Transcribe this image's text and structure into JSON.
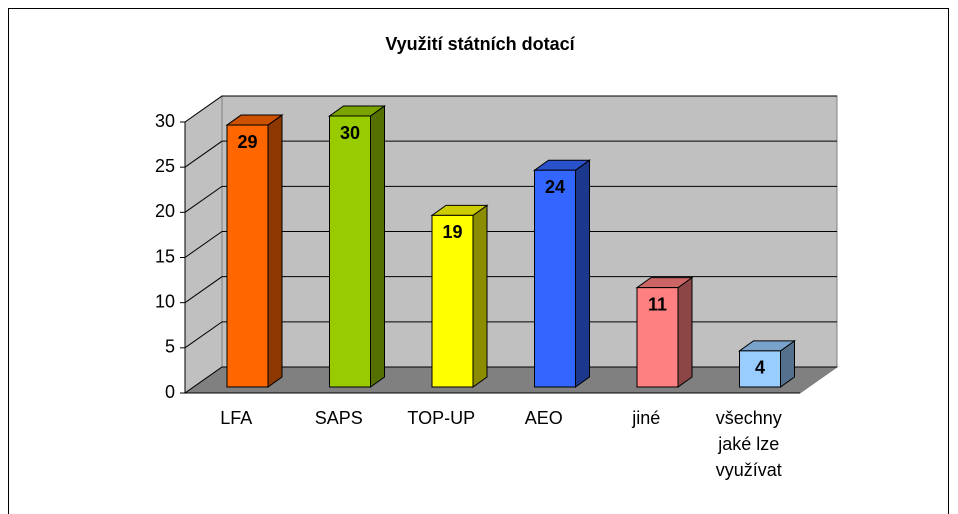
{
  "chart_data": {
    "type": "bar3d",
    "title": "Využití státních dotací",
    "categories": [
      "LFA",
      "SAPS",
      "TOP-UP",
      "AEO",
      "jiné",
      "všechny jaké lze využívat"
    ],
    "values": [
      29,
      30,
      19,
      24,
      11,
      4
    ],
    "colors": [
      "#ff6600",
      "#99cc00",
      "#ffff00",
      "#3366ff",
      "#ff8080",
      "#99ccff"
    ],
    "ylim": [
      0,
      30
    ],
    "yticks": [
      0,
      5,
      10,
      15,
      20,
      25,
      30
    ],
    "grid": true
  }
}
